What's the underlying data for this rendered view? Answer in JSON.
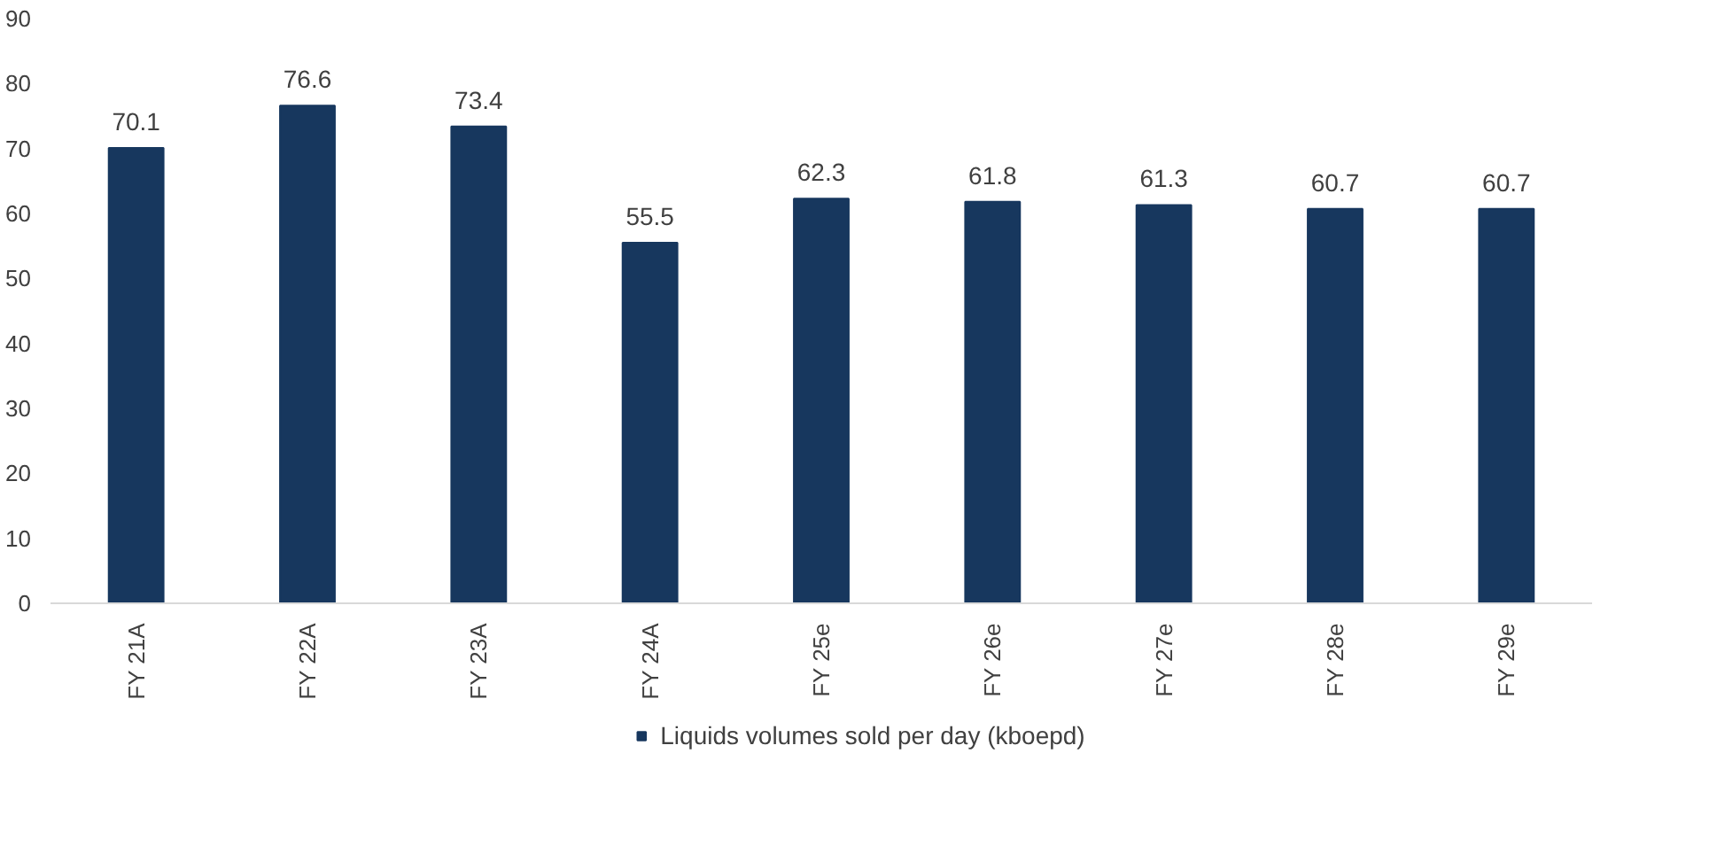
{
  "chart_data": {
    "type": "bar",
    "categories": [
      "FY 21A",
      "FY 22A",
      "FY 23A",
      "FY 24A",
      "FY 25e",
      "FY 26e",
      "FY 27e",
      "FY 28e",
      "FY 29e"
    ],
    "series": [
      {
        "name": "Liquids volumes sold per day (kboepd)",
        "color": "#17375e",
        "values": [
          70.1,
          76.6,
          73.4,
          55.5,
          62.3,
          61.8,
          61.3,
          60.7,
          60.7
        ]
      }
    ],
    "ylim": [
      0,
      90
    ],
    "yticks": [
      0,
      10,
      20,
      30,
      40,
      50,
      60,
      70,
      80,
      90
    ],
    "grid": false,
    "legend": "bottom",
    "data_labels": true
  }
}
